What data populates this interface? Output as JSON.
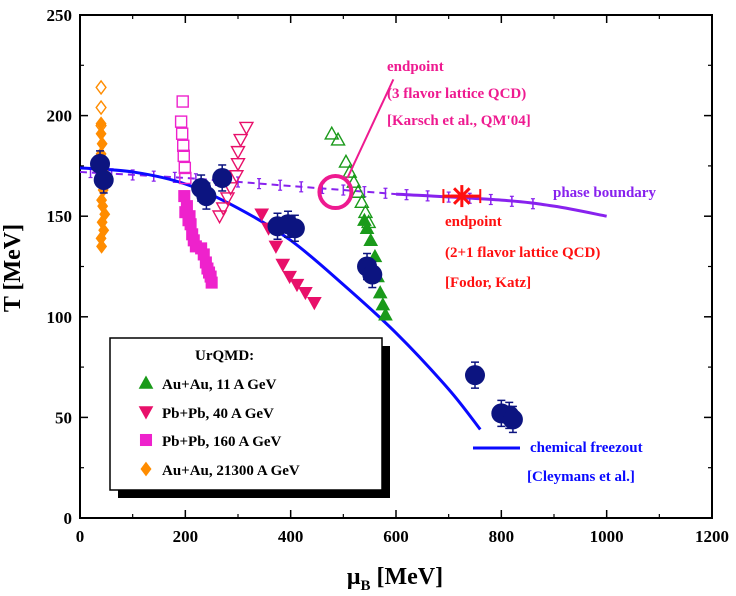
{
  "chart_data": {
    "type": "scatter",
    "xlabel_main": "μ",
    "xlabel_sub": "B",
    "xlabel_unit": " [MeV]",
    "ylabel": "T [MeV]",
    "xlim": [
      0,
      1200
    ],
    "ylim": [
      0,
      250
    ],
    "xticks": [
      0,
      200,
      400,
      600,
      800,
      1000,
      1200
    ],
    "yticks": [
      0,
      50,
      100,
      150,
      200,
      250
    ],
    "colors": {
      "au11": "#1a9a1a",
      "pb40": "#e8106a",
      "pb160": "#ee22cc",
      "au21300": "#ff8c00",
      "freezeout": "#0a0aff",
      "freezeout_points": "#0c1480",
      "phase": "#8822ee",
      "lattice3": "#ee1a90",
      "lattice21": "#ff1010"
    },
    "series": [
      {
        "name": "Au+Au, 11 A GeV",
        "key": "au11",
        "marker": "triangle-up",
        "filled": [
          [
            540,
            148
          ],
          [
            545,
            144
          ],
          [
            552,
            138
          ],
          [
            560,
            130
          ],
          [
            565,
            120
          ],
          [
            570,
            112
          ],
          [
            575,
            106
          ],
          [
            580,
            101
          ]
        ],
        "open": [
          [
            478,
            191
          ],
          [
            490,
            188
          ],
          [
            505,
            177
          ],
          [
            512,
            172
          ],
          [
            520,
            167
          ],
          [
            528,
            162
          ],
          [
            535,
            157
          ],
          [
            542,
            152
          ],
          [
            548,
            147
          ]
        ]
      },
      {
        "name": "Pb+Pb, 40 A GeV",
        "key": "pb40",
        "marker": "triangle-down",
        "filled": [
          [
            345,
            151
          ],
          [
            358,
            144
          ],
          [
            372,
            135
          ],
          [
            385,
            126
          ],
          [
            398,
            120
          ],
          [
            412,
            116
          ],
          [
            428,
            112
          ],
          [
            445,
            107
          ]
        ],
        "open": [
          [
            316,
            194
          ],
          [
            305,
            188
          ],
          [
            300,
            182
          ],
          [
            300,
            176
          ],
          [
            297,
            170
          ],
          [
            286,
            164
          ],
          [
            280,
            159
          ],
          [
            272,
            154
          ],
          [
            265,
            150
          ]
        ]
      },
      {
        "name": "Pb+Pb, 160 A GeV",
        "key": "pb160",
        "marker": "square",
        "filled": [
          [
            198,
            160
          ],
          [
            203,
            155
          ],
          [
            208,
            150
          ],
          [
            210,
            146
          ],
          [
            213,
            141
          ],
          [
            216,
            138
          ],
          [
            220,
            135
          ],
          [
            230,
            134
          ],
          [
            235,
            131
          ],
          [
            239,
            127
          ],
          [
            242,
            124
          ],
          [
            245,
            122
          ],
          [
            248,
            120
          ],
          [
            250,
            117
          ],
          [
            200,
            152
          ],
          [
            206,
            148
          ]
        ],
        "open": [
          [
            195,
            207
          ],
          [
            192,
            197
          ],
          [
            194,
            191
          ],
          [
            196,
            185
          ],
          [
            197,
            180
          ],
          [
            199,
            174
          ],
          [
            200,
            169
          ]
        ]
      },
      {
        "name": "Au+Au, 21300 A GeV",
        "key": "au21300",
        "marker": "diamond",
        "filled": [
          [
            40,
            196
          ],
          [
            40,
            191
          ],
          [
            42,
            186
          ],
          [
            40,
            181
          ],
          [
            42,
            177
          ],
          [
            45,
            172
          ],
          [
            40,
            168
          ],
          [
            44,
            163
          ],
          [
            41,
            158
          ],
          [
            43,
            155
          ],
          [
            47,
            151
          ],
          [
            42,
            147
          ],
          [
            45,
            143
          ],
          [
            40,
            139
          ],
          [
            41,
            135
          ]
        ],
        "open": [
          [
            40,
            214
          ],
          [
            40,
            204
          ],
          [
            40,
            195
          ]
        ]
      }
    ],
    "freezeout_points": [
      [
        38,
        176
      ],
      [
        45,
        168
      ],
      [
        230,
        164
      ],
      [
        240,
        160
      ],
      [
        270,
        169
      ],
      [
        375,
        145
      ],
      [
        395,
        146
      ],
      [
        408,
        144
      ],
      [
        545,
        125
      ],
      [
        555,
        121
      ],
      [
        750,
        71
      ],
      [
        800,
        52
      ],
      [
        815,
        51
      ],
      [
        822,
        49
      ]
    ],
    "freezeout_curve": [
      [
        0,
        174
      ],
      [
        100,
        172
      ],
      [
        200,
        166
      ],
      [
        300,
        154
      ],
      [
        400,
        138
      ],
      [
        500,
        116
      ],
      [
        600,
        92
      ],
      [
        700,
        64
      ],
      [
        760,
        44
      ]
    ],
    "phase_boundary": [
      [
        0,
        172
      ],
      [
        200,
        169
      ],
      [
        400,
        165
      ],
      [
        600,
        161
      ],
      [
        800,
        158
      ],
      [
        900,
        155
      ],
      [
        1000,
        150
      ]
    ],
    "phase_boundary_errorbars_x": [
      20,
      60,
      100,
      140,
      180,
      220,
      260,
      300,
      340,
      380,
      420,
      460,
      500,
      540,
      580,
      620,
      660,
      700,
      740,
      780,
      820,
      860
    ],
    "endpoints": [
      {
        "name": "3 flavor lattice QCD",
        "x": 485,
        "y": 162,
        "style": "open-circle"
      },
      {
        "name": "2+1 flavor lattice QCD",
        "x": 725,
        "y": 160,
        "xerr": 35,
        "style": "star"
      }
    ],
    "annotations": {
      "endpoint3_lines": [
        "endpoint",
        "(3 flavor lattice QCD)",
        "[Karsch et al., QM'04]"
      ],
      "endpoint21_lines": [
        "endpoint",
        "(2+1 flavor lattice QCD)",
        "[Fodor, Katz]"
      ],
      "phase_boundary_label": "phase boundary",
      "freezeout_lines": [
        "chemical freezout",
        "[Cleymans et al.]"
      ]
    },
    "legend": {
      "title": "UrQMD:",
      "entries": [
        "Au+Au, 11 A GeV",
        "Pb+Pb, 40 A GeV",
        "Pb+Pb, 160 A GeV",
        "Au+Au, 21300 A GeV"
      ]
    }
  }
}
